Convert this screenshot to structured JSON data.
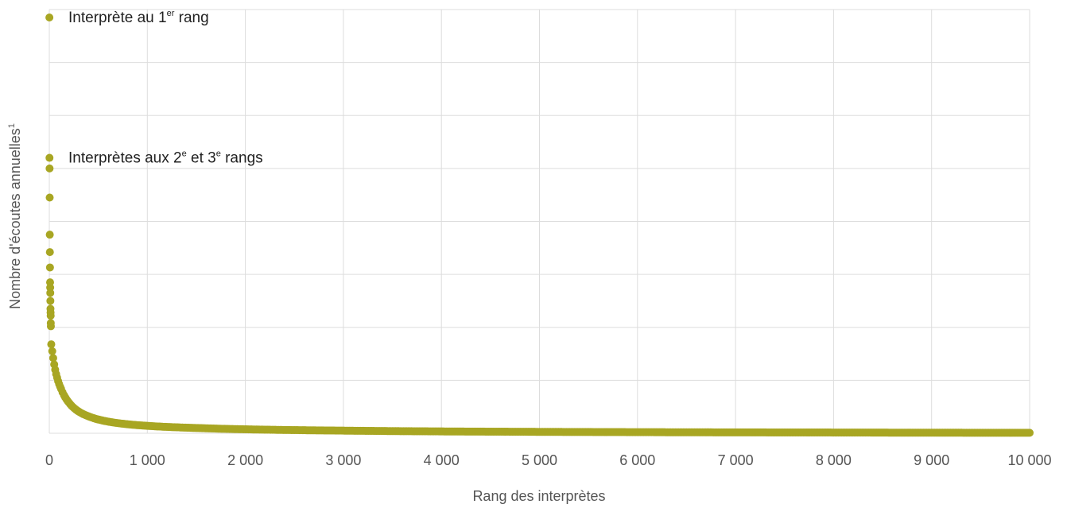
{
  "chart_data": {
    "type": "scatter",
    "xlabel": "Rang des interprètes",
    "ylabel_main": "Nombre d'écoutes annuelles",
    "ylabel_sup": "1",
    "x_ticks": [
      "0",
      "1 000",
      "2 000",
      "3 000",
      "4 000",
      "5 000",
      "6 000",
      "7 000",
      "8 000",
      "9 000",
      "10 000"
    ],
    "xlim": [
      0,
      10000
    ],
    "ylim": [
      0,
      8
    ],
    "y_tick_labels_shown": false,
    "grid": true,
    "legend": "none",
    "color": "#a8a623",
    "annotations": [
      {
        "main": "Interprète au 1",
        "sup": "er",
        "tail": " rang",
        "x": 0,
        "y": 7.85
      },
      {
        "parts": [
          {
            "t": "Interprètes aux 2"
          },
          {
            "t": "e",
            "sup": true
          },
          {
            "t": " et 3"
          },
          {
            "t": "e",
            "sup": true
          },
          {
            "t": " rangs"
          }
        ],
        "x": 0,
        "y": 5.2
      }
    ],
    "top_points": [
      {
        "x": 1,
        "y": 7.85
      },
      {
        "x": 2,
        "y": 5.2
      },
      {
        "x": 3,
        "y": 5.0
      },
      {
        "x": 4,
        "y": 4.45
      },
      {
        "x": 5,
        "y": 3.75
      },
      {
        "x": 6,
        "y": 3.42
      },
      {
        "x": 7,
        "y": 3.13
      },
      {
        "x": 8,
        "y": 2.85
      },
      {
        "x": 9,
        "y": 2.75
      },
      {
        "x": 10,
        "y": 2.65
      },
      {
        "x": 11,
        "y": 2.5
      },
      {
        "x": 12,
        "y": 2.35
      },
      {
        "x": 13,
        "y": 2.28
      },
      {
        "x": 14,
        "y": 2.22
      },
      {
        "x": 15,
        "y": 2.08
      },
      {
        "x": 16,
        "y": 2.02
      }
    ],
    "tail_series": {
      "x": [
        20,
        30,
        40,
        50,
        60,
        80,
        100,
        120,
        150,
        200,
        250,
        300,
        400,
        500,
        600,
        800,
        1000,
        1200,
        1500,
        2000,
        2500,
        3000,
        4000,
        5000,
        6000,
        7000,
        8000,
        9000,
        10000
      ],
      "y": [
        1.68,
        1.55,
        1.42,
        1.3,
        1.2,
        1.05,
        0.93,
        0.84,
        0.72,
        0.58,
        0.48,
        0.41,
        0.32,
        0.26,
        0.22,
        0.17,
        0.14,
        0.12,
        0.1,
        0.075,
        0.06,
        0.05,
        0.035,
        0.027,
        0.021,
        0.017,
        0.014,
        0.011,
        0.009
      ]
    }
  }
}
